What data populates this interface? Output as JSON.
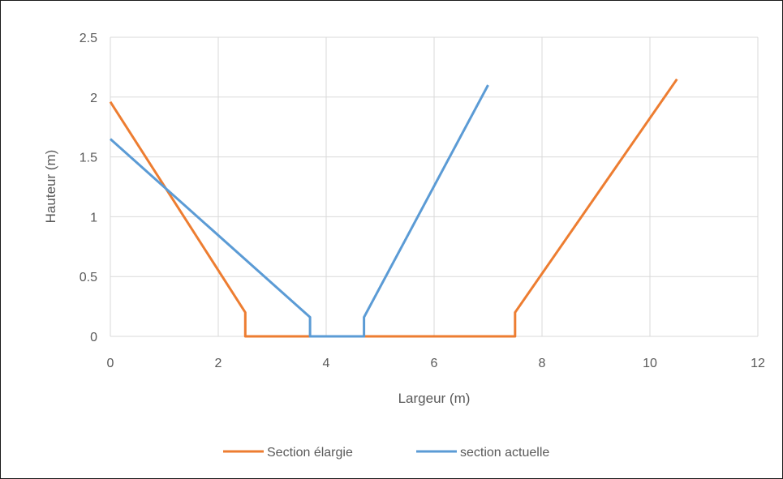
{
  "chart_data": {
    "type": "line",
    "title": "",
    "xlabel": "Largeur (m)",
    "ylabel": "Hauteur (m)",
    "xlim": [
      0,
      12
    ],
    "ylim": [
      0,
      2.5
    ],
    "x_ticks": [
      0,
      2,
      4,
      6,
      8,
      10,
      12
    ],
    "y_ticks": [
      0,
      0.5,
      1,
      1.5,
      2,
      2.5
    ],
    "x_tick_labels": [
      "0",
      "2",
      "4",
      "6",
      "8",
      "10",
      "12"
    ],
    "y_tick_labels": [
      "0",
      "0.5",
      "1",
      "1.5",
      "2",
      "2.5"
    ],
    "grid": true,
    "legend_position": "bottom",
    "series": [
      {
        "name": "Section élargie",
        "color": "#ED7D31",
        "points": [
          [
            0,
            1.96
          ],
          [
            2.5,
            0.2
          ],
          [
            2.5,
            0
          ],
          [
            7.5,
            0
          ],
          [
            7.5,
            0.2
          ],
          [
            10.5,
            2.15
          ]
        ]
      },
      {
        "name": "section actuelle",
        "color": "#5B9BD5",
        "points": [
          [
            0,
            1.65
          ],
          [
            3.7,
            0.16
          ],
          [
            3.7,
            0
          ],
          [
            4.7,
            0
          ],
          [
            4.7,
            0.16
          ],
          [
            7,
            2.1
          ]
        ]
      }
    ]
  }
}
